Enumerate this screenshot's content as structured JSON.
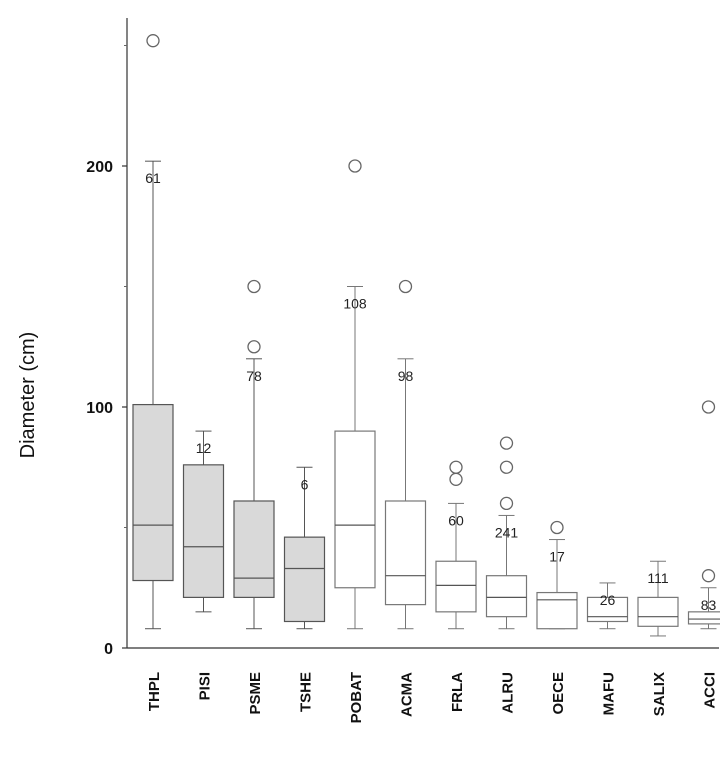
{
  "chart_data": {
    "type": "box",
    "ylabel": "Diameter (cm)",
    "ylim": [
      0,
      260
    ],
    "yticks": [
      0,
      100,
      200
    ],
    "fill_colors": {
      "filled": "#d9d9d9",
      "open": "#ffffff"
    },
    "categories": [
      "THPL",
      "PISI",
      "PSME",
      "TSHE",
      "POBAT",
      "ACMA",
      "FRLA",
      "ALRU",
      "OECE",
      "MAFU",
      "SALIX",
      "ACCI"
    ],
    "boxes": [
      {
        "label": "THPL",
        "n": "61",
        "whisker_low": 8,
        "q1": 28,
        "median": 51,
        "q3": 101,
        "whisker_high": 202,
        "outliers": [
          252
        ],
        "filled": true
      },
      {
        "label": "PISI",
        "n": "12",
        "whisker_low": 15,
        "q1": 21,
        "median": 42,
        "q3": 76,
        "whisker_high": 90,
        "outliers": [],
        "filled": true
      },
      {
        "label": "PSME",
        "n": "78",
        "whisker_low": 8,
        "q1": 21,
        "median": 29,
        "q3": 61,
        "whisker_high": 120,
        "outliers": [
          125,
          150
        ],
        "filled": true
      },
      {
        "label": "TSHE",
        "n": "6",
        "whisker_low": 8,
        "q1": 11,
        "median": 33,
        "q3": 46,
        "whisker_high": 75,
        "outliers": [],
        "filled": true
      },
      {
        "label": "POBAT",
        "n": "108",
        "whisker_low": 8,
        "q1": 25,
        "median": 51,
        "q3": 90,
        "whisker_high": 150,
        "outliers": [
          200
        ],
        "filled": false
      },
      {
        "label": "ACMA",
        "n": "98",
        "whisker_low": 8,
        "q1": 18,
        "median": 30,
        "q3": 61,
        "whisker_high": 120,
        "outliers": [
          150
        ],
        "filled": false
      },
      {
        "label": "FRLA",
        "n": "60",
        "whisker_low": 8,
        "q1": 15,
        "median": 26,
        "q3": 36,
        "whisker_high": 60,
        "outliers": [
          70,
          75
        ],
        "filled": false
      },
      {
        "label": "ALRU",
        "n": "241",
        "whisker_low": 8,
        "q1": 13,
        "median": 21,
        "q3": 30,
        "whisker_high": 55,
        "outliers": [
          60,
          75,
          85
        ],
        "filled": false
      },
      {
        "label": "OECE",
        "n": "17",
        "whisker_low": 8,
        "q1": 8,
        "median": 20,
        "q3": 23,
        "whisker_high": 45,
        "outliers": [
          50
        ],
        "filled": false
      },
      {
        "label": "MAFU",
        "n": "26",
        "whisker_low": 8,
        "q1": 11,
        "median": 13,
        "q3": 21,
        "whisker_high": 27,
        "outliers": [],
        "filled": false
      },
      {
        "label": "SALIX",
        "n": "111",
        "whisker_low": 5,
        "q1": 9,
        "median": 13,
        "q3": 21,
        "whisker_high": 36,
        "outliers": [],
        "filled": false
      },
      {
        "label": "ACCI",
        "n": "83",
        "whisker_low": 8,
        "q1": 10,
        "median": 12,
        "q3": 15,
        "whisker_high": 25,
        "outliers": [
          30,
          100
        ],
        "filled": false
      }
    ]
  }
}
